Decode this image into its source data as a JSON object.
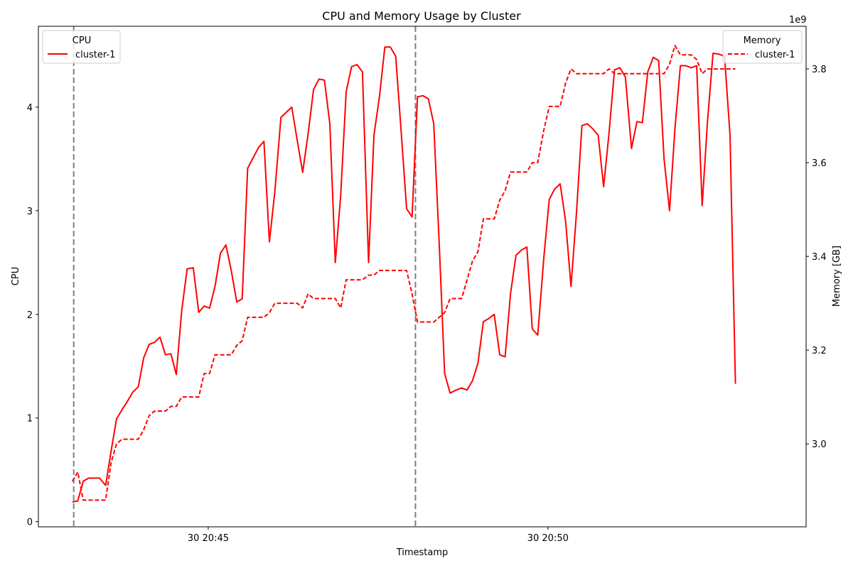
{
  "chart_data": {
    "type": "line",
    "title": "CPU and Memory Usage by Cluster",
    "xlabel": "Timestamp",
    "ylabel_left": "CPU",
    "ylabel_right": "Memory [GB]",
    "right_axis_offset_label": "1e9",
    "x_ticks": [
      {
        "minute": 45,
        "label": "30 20:45"
      },
      {
        "minute": 50,
        "label": "30 20:50"
      }
    ],
    "x_range_minutes": [
      42.5,
      53.8
    ],
    "ylim_left": [
      -0.05,
      4.78
    ],
    "ylim_right": [
      2.823,
      3.891
    ],
    "yticks_left": [
      0,
      1,
      2,
      3,
      4
    ],
    "yticks_right": [
      3.0,
      3.2,
      3.4,
      3.6,
      3.8
    ],
    "yticks_right_labels": [
      "3.0",
      "3.2",
      "3.4",
      "3.6",
      "3.8"
    ],
    "vlines_minutes": [
      43.02,
      48.05
    ],
    "colors": {
      "series": "#ff0000",
      "vline": "#7f7f7f",
      "legend_border": "#cccccc"
    },
    "legends": [
      {
        "title": "CPU",
        "position": "top-left",
        "style": "solid",
        "entries": [
          "cluster-1"
        ]
      },
      {
        "title": "Memory",
        "position": "top-right",
        "style": "dashed",
        "entries": [
          "cluster-1"
        ]
      }
    ],
    "series": [
      {
        "name": "cluster-1",
        "axis": "left",
        "style": "solid",
        "points": [
          [
            43.0,
            0.19
          ],
          [
            43.08,
            0.2
          ],
          [
            43.16,
            0.39
          ],
          [
            43.24,
            0.42
          ],
          [
            43.32,
            0.42
          ],
          [
            43.4,
            0.42
          ],
          [
            43.49,
            0.35
          ],
          [
            43.57,
            0.68
          ],
          [
            43.65,
            0.99
          ],
          [
            43.73,
            1.08
          ],
          [
            43.81,
            1.16
          ],
          [
            43.89,
            1.25
          ],
          [
            43.97,
            1.3
          ],
          [
            44.05,
            1.58
          ],
          [
            44.13,
            1.71
          ],
          [
            44.21,
            1.73
          ],
          [
            44.29,
            1.78
          ],
          [
            44.37,
            1.61
          ],
          [
            44.45,
            1.62
          ],
          [
            44.53,
            1.42
          ],
          [
            44.61,
            2.04
          ],
          [
            44.69,
            2.44
          ],
          [
            44.78,
            2.45
          ],
          [
            44.86,
            2.02
          ],
          [
            44.94,
            2.08
          ],
          [
            45.02,
            2.06
          ],
          [
            45.1,
            2.27
          ],
          [
            45.18,
            2.59
          ],
          [
            45.26,
            2.67
          ],
          [
            45.34,
            2.42
          ],
          [
            45.42,
            2.12
          ],
          [
            45.5,
            2.15
          ],
          [
            45.58,
            3.41
          ],
          [
            45.66,
            3.51
          ],
          [
            45.74,
            3.61
          ],
          [
            45.82,
            3.67
          ],
          [
            45.9,
            2.7
          ],
          [
            45.98,
            3.18
          ],
          [
            46.07,
            3.9
          ],
          [
            46.15,
            3.95
          ],
          [
            46.23,
            4.0
          ],
          [
            46.31,
            3.68
          ],
          [
            46.39,
            3.37
          ],
          [
            46.47,
            3.74
          ],
          [
            46.55,
            4.17
          ],
          [
            46.63,
            4.27
          ],
          [
            46.71,
            4.26
          ],
          [
            46.79,
            3.84
          ],
          [
            46.87,
            2.5
          ],
          [
            46.95,
            3.15
          ],
          [
            47.03,
            4.15
          ],
          [
            47.11,
            4.39
          ],
          [
            47.19,
            4.41
          ],
          [
            47.27,
            4.34
          ],
          [
            47.36,
            2.5
          ],
          [
            47.44,
            3.73
          ],
          [
            47.52,
            4.1
          ],
          [
            47.6,
            4.58
          ],
          [
            47.68,
            4.58
          ],
          [
            47.76,
            4.49
          ],
          [
            47.84,
            3.76
          ],
          [
            47.92,
            3.02
          ],
          [
            48.0,
            2.94
          ],
          [
            48.08,
            4.1
          ],
          [
            48.16,
            4.11
          ],
          [
            48.24,
            4.08
          ],
          [
            48.32,
            3.84
          ],
          [
            48.4,
            2.68
          ],
          [
            48.48,
            1.43
          ],
          [
            48.56,
            1.24
          ],
          [
            48.65,
            1.27
          ],
          [
            48.73,
            1.29
          ],
          [
            48.81,
            1.27
          ],
          [
            48.89,
            1.36
          ],
          [
            48.97,
            1.53
          ],
          [
            49.05,
            1.93
          ],
          [
            49.13,
            1.96
          ],
          [
            49.21,
            2.0
          ],
          [
            49.29,
            1.61
          ],
          [
            49.37,
            1.59
          ],
          [
            49.45,
            2.2
          ],
          [
            49.53,
            2.57
          ],
          [
            49.61,
            2.62
          ],
          [
            49.69,
            2.65
          ],
          [
            49.77,
            1.86
          ],
          [
            49.85,
            1.8
          ],
          [
            49.94,
            2.55
          ],
          [
            50.02,
            3.11
          ],
          [
            50.1,
            3.21
          ],
          [
            50.18,
            3.26
          ],
          [
            50.26,
            2.9
          ],
          [
            50.34,
            2.27
          ],
          [
            50.42,
            2.98
          ],
          [
            50.5,
            3.82
          ],
          [
            50.58,
            3.84
          ],
          [
            50.66,
            3.79
          ],
          [
            50.74,
            3.73
          ],
          [
            50.82,
            3.23
          ],
          [
            50.9,
            3.75
          ],
          [
            50.98,
            4.36
          ],
          [
            51.06,
            4.38
          ],
          [
            51.14,
            4.29
          ],
          [
            51.23,
            3.6
          ],
          [
            51.31,
            3.86
          ],
          [
            51.39,
            3.85
          ],
          [
            51.47,
            4.34
          ],
          [
            51.55,
            4.48
          ],
          [
            51.63,
            4.45
          ],
          [
            51.71,
            3.5
          ],
          [
            51.79,
            3.0
          ],
          [
            51.87,
            3.79
          ],
          [
            51.95,
            4.4
          ],
          [
            52.03,
            4.4
          ],
          [
            52.11,
            4.38
          ],
          [
            52.19,
            4.4
          ],
          [
            52.27,
            3.05
          ],
          [
            52.35,
            3.87
          ],
          [
            52.43,
            4.52
          ],
          [
            52.52,
            4.51
          ],
          [
            52.6,
            4.49
          ],
          [
            52.68,
            3.73
          ],
          [
            52.76,
            1.33
          ]
        ]
      },
      {
        "name": "cluster-1",
        "axis": "right",
        "style": "dashed",
        "points": [
          [
            43.0,
            2.92
          ],
          [
            43.08,
            2.94
          ],
          [
            43.16,
            2.88
          ],
          [
            43.24,
            2.88
          ],
          [
            43.32,
            2.88
          ],
          [
            43.4,
            2.88
          ],
          [
            43.49,
            2.88
          ],
          [
            43.57,
            2.96
          ],
          [
            43.65,
            3.0
          ],
          [
            43.73,
            3.01
          ],
          [
            43.81,
            3.01
          ],
          [
            43.89,
            3.01
          ],
          [
            43.97,
            3.01
          ],
          [
            44.05,
            3.03
          ],
          [
            44.13,
            3.06
          ],
          [
            44.21,
            3.07
          ],
          [
            44.29,
            3.07
          ],
          [
            44.37,
            3.07
          ],
          [
            44.45,
            3.08
          ],
          [
            44.53,
            3.08
          ],
          [
            44.61,
            3.1
          ],
          [
            44.69,
            3.1
          ],
          [
            44.78,
            3.1
          ],
          [
            44.86,
            3.1
          ],
          [
            44.94,
            3.15
          ],
          [
            45.02,
            3.15
          ],
          [
            45.1,
            3.19
          ],
          [
            45.18,
            3.19
          ],
          [
            45.26,
            3.19
          ],
          [
            45.34,
            3.19
          ],
          [
            45.42,
            3.21
          ],
          [
            45.5,
            3.22
          ],
          [
            45.58,
            3.27
          ],
          [
            45.66,
            3.27
          ],
          [
            45.74,
            3.27
          ],
          [
            45.82,
            3.27
          ],
          [
            45.9,
            3.28
          ],
          [
            45.98,
            3.3
          ],
          [
            46.07,
            3.3
          ],
          [
            46.15,
            3.3
          ],
          [
            46.23,
            3.3
          ],
          [
            46.31,
            3.3
          ],
          [
            46.39,
            3.29
          ],
          [
            46.47,
            3.32
          ],
          [
            46.55,
            3.31
          ],
          [
            46.63,
            3.31
          ],
          [
            46.71,
            3.31
          ],
          [
            46.79,
            3.31
          ],
          [
            46.87,
            3.31
          ],
          [
            46.95,
            3.29
          ],
          [
            47.03,
            3.35
          ],
          [
            47.11,
            3.35
          ],
          [
            47.19,
            3.35
          ],
          [
            47.27,
            3.35
          ],
          [
            47.36,
            3.36
          ],
          [
            47.44,
            3.36
          ],
          [
            47.52,
            3.37
          ],
          [
            47.6,
            3.37
          ],
          [
            47.68,
            3.37
          ],
          [
            47.76,
            3.37
          ],
          [
            47.84,
            3.37
          ],
          [
            47.92,
            3.37
          ],
          [
            48.0,
            3.32
          ],
          [
            48.08,
            3.26
          ],
          [
            48.16,
            3.26
          ],
          [
            48.24,
            3.26
          ],
          [
            48.32,
            3.26
          ],
          [
            48.4,
            3.27
          ],
          [
            48.48,
            3.28
          ],
          [
            48.56,
            3.31
          ],
          [
            48.65,
            3.31
          ],
          [
            48.73,
            3.31
          ],
          [
            48.81,
            3.35
          ],
          [
            48.89,
            3.39
          ],
          [
            48.97,
            3.41
          ],
          [
            49.05,
            3.48
          ],
          [
            49.13,
            3.48
          ],
          [
            49.21,
            3.48
          ],
          [
            49.29,
            3.52
          ],
          [
            49.37,
            3.54
          ],
          [
            49.45,
            3.58
          ],
          [
            49.53,
            3.58
          ],
          [
            49.61,
            3.58
          ],
          [
            49.69,
            3.58
          ],
          [
            49.77,
            3.6
          ],
          [
            49.85,
            3.6
          ],
          [
            49.94,
            3.67
          ],
          [
            50.02,
            3.72
          ],
          [
            50.1,
            3.72
          ],
          [
            50.18,
            3.72
          ],
          [
            50.26,
            3.77
          ],
          [
            50.34,
            3.8
          ],
          [
            50.42,
            3.79
          ],
          [
            50.5,
            3.79
          ],
          [
            50.58,
            3.79
          ],
          [
            50.66,
            3.79
          ],
          [
            50.74,
            3.79
          ],
          [
            50.82,
            3.79
          ],
          [
            50.9,
            3.8
          ],
          [
            50.98,
            3.79
          ],
          [
            51.06,
            3.79
          ],
          [
            51.14,
            3.79
          ],
          [
            51.23,
            3.79
          ],
          [
            51.31,
            3.79
          ],
          [
            51.39,
            3.79
          ],
          [
            51.47,
            3.79
          ],
          [
            51.55,
            3.79
          ],
          [
            51.63,
            3.79
          ],
          [
            51.71,
            3.79
          ],
          [
            51.79,
            3.81
          ],
          [
            51.87,
            3.85
          ],
          [
            51.95,
            3.83
          ],
          [
            52.03,
            3.83
          ],
          [
            52.11,
            3.83
          ],
          [
            52.19,
            3.82
          ],
          [
            52.27,
            3.79
          ],
          [
            52.35,
            3.8
          ],
          [
            52.43,
            3.8
          ],
          [
            52.52,
            3.8
          ],
          [
            52.6,
            3.8
          ],
          [
            52.68,
            3.8
          ],
          [
            52.76,
            3.8
          ]
        ]
      }
    ]
  }
}
